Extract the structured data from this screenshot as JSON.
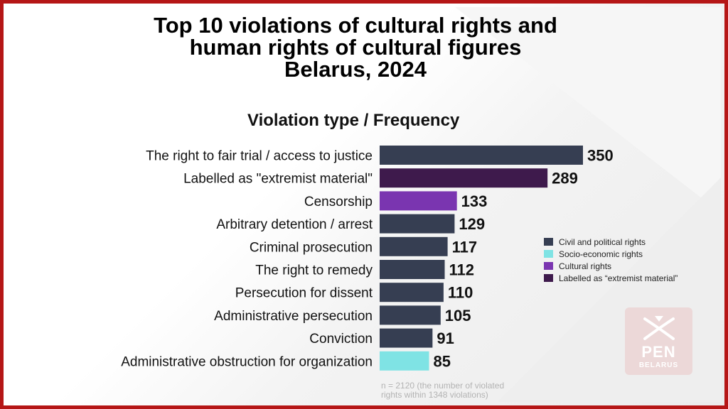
{
  "title": {
    "line1": "Top 10 violations of cultural rights and",
    "line2": "human rights of cultural figures",
    "line3": "Belarus, 2024"
  },
  "subtitle": "Violation type  /  Frequency",
  "colors": {
    "civil_political": "#363e52",
    "socio_economic": "#7fe3e4",
    "cultural": "#7a35b0",
    "extremist": "#3e1a4c",
    "frame": "#b51616"
  },
  "legend": [
    {
      "label": "Civil and political rights",
      "color": "#363e52"
    },
    {
      "label": "Socio-economic rights",
      "color": "#7fe3e4"
    },
    {
      "label": "Cultural rights",
      "color": "#7a35b0"
    },
    {
      "label": "Labelled as “extremist material”",
      "color": "#3e1a4c"
    }
  ],
  "footnote": {
    "line1": "n = 2120 (the number of violated",
    "line2": "rights within 1348 violations)"
  },
  "logo": {
    "name": "pen-belarus-logo",
    "text1": "PEN",
    "text2": "BELARUS"
  },
  "chart_data": {
    "type": "bar",
    "orientation": "horizontal",
    "categories": [
      "The right to fair trial / access to justice",
      "Labelled as \"extremist material\"",
      "Censorship",
      "Arbitrary detention / arrest",
      "Criminal prosecution",
      "The right to remedy",
      "Persecution for dissent",
      "Administrative persecution",
      "Conviction",
      "Administrative obstruction for organization"
    ],
    "values": [
      350,
      289,
      133,
      129,
      117,
      112,
      110,
      105,
      91,
      85
    ],
    "groups": [
      "civil_political",
      "extremist",
      "cultural",
      "civil_political",
      "civil_political",
      "civil_political",
      "civil_political",
      "civil_political",
      "civil_political",
      "socio_economic"
    ],
    "xlim": [
      0,
      350
    ],
    "grid": false,
    "legend_position": "right"
  }
}
